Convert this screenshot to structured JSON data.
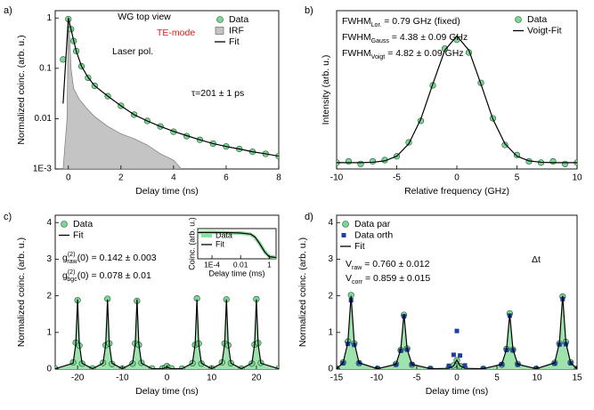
{
  "chart_data": [
    {
      "type": "scatter",
      "panel": "a)",
      "xlabel": "Delay time (ns)",
      "ylabel": "Normalized coinc. (arb. u.)",
      "xlim": [
        -0.5,
        8
      ],
      "ylim": [
        0.001,
        1.4
      ],
      "ylog": true,
      "xticks": [
        0,
        2,
        4,
        6,
        8
      ],
      "yticks": [
        {
          "value": 0.001,
          "label": "1E-3"
        },
        0.01,
        0.1,
        1
      ],
      "legend": "upper right",
      "annotations": [
        {
          "main": "τ=201 ± 1 ps"
        },
        {
          "main": "WG top view"
        },
        {
          "main": "TE-mode",
          "color": "#e0201b"
        },
        {
          "main": "Laser pol."
        }
      ],
      "series": [
        {
          "name": "Data",
          "style": "markers",
          "marker": "circle",
          "color": "#7fd49a",
          "x": [
            -0.2,
            0,
            0.1,
            0.2,
            0.3,
            0.5,
            0.75,
            1,
            1.5,
            2,
            2.5,
            3,
            3.5,
            4,
            4.5,
            5,
            5.5,
            6,
            6.5,
            7,
            7.5,
            8
          ],
          "values": [
            0.15,
            0.95,
            0.6,
            0.35,
            0.22,
            0.11,
            0.065,
            0.045,
            0.028,
            0.018,
            0.012,
            0.009,
            0.007,
            0.0055,
            0.0045,
            0.0038,
            0.0032,
            0.0028,
            0.0025,
            0.0022,
            0.002,
            0.0018
          ]
        },
        {
          "name": "IRF",
          "style": "area",
          "color": "#c4c4c4",
          "x": [
            -0.2,
            -0.05,
            0,
            0.05,
            0.1,
            0.2,
            0.4,
            0.7,
            1,
            1.5,
            2,
            2.5,
            3,
            3.5,
            4,
            4.3
          ],
          "values": [
            0.001,
            0.01,
            1,
            0.4,
            0.1,
            0.04,
            0.025,
            0.016,
            0.011,
            0.007,
            0.005,
            0.004,
            0.003,
            0.002,
            0.0015,
            0.001
          ]
        },
        {
          "name": "Fit",
          "style": "line",
          "color": "#000000",
          "x": [
            -0.2,
            0,
            0.1,
            0.2,
            0.3,
            0.5,
            0.75,
            1,
            1.5,
            2,
            2.5,
            3,
            3.5,
            4,
            4.5,
            5,
            5.5,
            6,
            6.5,
            7,
            7.5,
            8
          ],
          "values": [
            0.02,
            1,
            0.6,
            0.36,
            0.22,
            0.11,
            0.066,
            0.045,
            0.028,
            0.018,
            0.012,
            0.009,
            0.007,
            0.0056,
            0.0046,
            0.0038,
            0.0032,
            0.0028,
            0.0025,
            0.0022,
            0.002,
            0.0018
          ]
        }
      ]
    },
    {
      "type": "scatter",
      "panel": "b)",
      "xlabel": "Relative frequency (GHz)",
      "ylabel": "Intensity (arb. u.)",
      "xlim": [
        -10,
        10
      ],
      "ylim": [
        0,
        1.25
      ],
      "xticks": [
        -10,
        -5,
        0,
        5,
        10
      ],
      "yticks": [],
      "legend": "upper right",
      "annotations": [
        {
          "main": "FWHM",
          "sub": "Lor.",
          "rest": "  = 0.79 GHz (fixed)"
        },
        {
          "main": "FWHM",
          "sub": "Gauss",
          "rest": " = 4.38 ± 0.09 GHz"
        },
        {
          "main": "FWHM",
          "sub": "Voigt",
          "rest": " = 4.82 ± 0.09 GHz"
        }
      ],
      "x": [
        -10,
        -9,
        -8,
        -7,
        -6,
        -5,
        -4,
        -3,
        -2,
        -1,
        0,
        1,
        2,
        3,
        4,
        5,
        6,
        7,
        8,
        9,
        10
      ],
      "series": [
        {
          "name": "Data",
          "style": "markers",
          "marker": "circle",
          "color": "#7fd49a",
          "values": [
            0.05,
            0.06,
            0.04,
            0.06,
            0.07,
            0.1,
            0.21,
            0.38,
            0.66,
            0.95,
            1.02,
            0.92,
            0.68,
            0.4,
            0.19,
            0.11,
            0.06,
            0.05,
            0.06,
            0.04,
            0.05
          ]
        },
        {
          "name": "Voigt-Fit",
          "style": "line",
          "color": "#000000",
          "values": [
            0.05,
            0.05,
            0.05,
            0.053,
            0.064,
            0.101,
            0.199,
            0.393,
            0.671,
            0.938,
            1.05,
            0.938,
            0.671,
            0.393,
            0.199,
            0.101,
            0.064,
            0.053,
            0.05,
            0.05,
            0.05
          ]
        }
      ]
    },
    {
      "type": "scatter",
      "panel": "c)",
      "xlabel": "Delay time (ns)",
      "ylabel": "Normalized coinc. (arb. u.)",
      "xlim": [
        -25,
        25
      ],
      "ylim": [
        0,
        4.2
      ],
      "xticks": [
        -20,
        -10,
        0,
        10,
        20
      ],
      "yticks": [
        0,
        1,
        2,
        3,
        4
      ],
      "legend": "upper left",
      "annotations": [
        {
          "main": "g",
          "sup": "(2)",
          "sub": "raw",
          "rest": "(0) = 0.142 ± 0.003"
        },
        {
          "main": "g",
          "sup": "(2)",
          "sub": "bgc",
          "rest": "(0) = 0.078 ± 0.01"
        }
      ],
      "x": [
        -25,
        -21,
        -20.4,
        -20,
        -19.6,
        -19,
        -16.65,
        -14.3,
        -13.7,
        -13.3,
        -12.9,
        -12.3,
        -10,
        -7.7,
        -7.1,
        -6.7,
        -6.3,
        -5.7,
        -3.35,
        -1,
        -0.4,
        0,
        0.4,
        1,
        3.35,
        5.7,
        6.3,
        6.7,
        7.1,
        7.7,
        10,
        12.3,
        12.9,
        13.3,
        13.7,
        14.3,
        16.65,
        19,
        19.6,
        20,
        20.4,
        21,
        25
      ],
      "series": [
        {
          "name": "Data",
          "style": "markers",
          "marker": "circle",
          "color": "#7fd49a",
          "values": [
            0.01,
            0.18,
            0.72,
            1.88,
            0.64,
            0.15,
            0.02,
            0.17,
            0.65,
            1.92,
            0.7,
            0.14,
            0.01,
            0.15,
            0.7,
            1.86,
            0.66,
            0.17,
            0.02,
            0.02,
            0.04,
            0.08,
            0.03,
            0.02,
            0.01,
            0.16,
            0.66,
            1.93,
            0.7,
            0.15,
            0.02,
            0.18,
            0.7,
            1.9,
            0.65,
            0.16,
            0.01,
            0.15,
            0.67,
            1.91,
            0.71,
            0.17,
            0.02
          ]
        },
        {
          "name": "Fit",
          "style": "line",
          "color": "#000000",
          "fill": "#9ee3ae",
          "values": [
            0.01,
            0.16,
            0.68,
            1.9,
            0.68,
            0.16,
            0.01,
            0.16,
            0.68,
            1.9,
            0.68,
            0.16,
            0.01,
            0.16,
            0.68,
            1.9,
            0.68,
            0.16,
            0.01,
            0.01,
            0.03,
            0.07,
            0.03,
            0.01,
            0.01,
            0.16,
            0.68,
            1.9,
            0.68,
            0.16,
            0.01,
            0.16,
            0.68,
            1.9,
            0.68,
            0.16,
            0.01,
            0.16,
            0.68,
            1.9,
            0.68,
            0.16,
            0.01
          ]
        }
      ]
    },
    {
      "type": "scatter",
      "panel": "d)",
      "xlabel": "Delay time (ns)",
      "ylabel": "Normalized coinc. (arb. u.)",
      "xlim": [
        -15,
        15
      ],
      "ylim": [
        0,
        4.2
      ],
      "xticks": [
        -15,
        -10,
        -5,
        0,
        5,
        10,
        15
      ],
      "yticks": [
        0,
        1,
        2,
        3,
        4
      ],
      "legend": "upper left",
      "annotations": [
        {
          "main": "V",
          "sub": "raw",
          "rest": " = 0.760 ± 0.012"
        },
        {
          "main": "V",
          "sub": "corr",
          "rest": " = 0.859 ± 0.015"
        },
        {
          "main": "Δt"
        }
      ],
      "x": [
        -15,
        -14.2,
        -13.6,
        -13.2,
        -12.8,
        -12.2,
        -9.9,
        -7.6,
        -7,
        -6.6,
        -6.2,
        -5.6,
        -3.3,
        -1,
        -0.4,
        0,
        0.4,
        1,
        3.3,
        5.6,
        6.2,
        6.6,
        7,
        7.6,
        9.9,
        12.2,
        12.8,
        13.2,
        13.6,
        14.2,
        15
      ],
      "series": [
        {
          "name": "Data par",
          "style": "markers",
          "marker": "circle",
          "color": "#7fd49a",
          "values": [
            0.01,
            0.18,
            0.75,
            2.02,
            0.7,
            0.16,
            0.01,
            0.14,
            0.52,
            1.48,
            0.56,
            0.12,
            0.01,
            0.03,
            0.1,
            0.24,
            0.08,
            0.02,
            0.01,
            0.12,
            0.55,
            1.52,
            0.53,
            0.14,
            0.01,
            0.17,
            0.7,
            1.98,
            0.74,
            0.18,
            0.01
          ]
        },
        {
          "name": "Data orth",
          "style": "markers",
          "marker": "square",
          "color": "#1f3fa0",
          "values": [
            0.01,
            0.16,
            0.69,
            1.88,
            0.66,
            0.17,
            0.01,
            0.12,
            0.5,
            1.44,
            0.53,
            0.13,
            0.01,
            0.09,
            0.39,
            1.04,
            0.37,
            0.1,
            0.01,
            0.13,
            0.52,
            1.46,
            0.51,
            0.12,
            0.01,
            0.15,
            0.67,
            1.91,
            0.68,
            0.16,
            0.01
          ]
        },
        {
          "name": "Fit",
          "style": "line",
          "color": "#000000",
          "fill": "#9ee3ae",
          "values": [
            0.01,
            0.17,
            0.72,
            2.0,
            0.72,
            0.17,
            0.01,
            0.13,
            0.54,
            1.5,
            0.54,
            0.13,
            0.01,
            0.02,
            0.09,
            0.25,
            0.09,
            0.02,
            0.01,
            0.13,
            0.54,
            1.5,
            0.54,
            0.13,
            0.01,
            0.17,
            0.72,
            2.0,
            0.72,
            0.17,
            0.01
          ]
        }
      ]
    },
    {
      "type": "scatter",
      "xlabel": "Delay time (ms)",
      "ylabel": "Coinc. (arb. u.)",
      "xlim": [
        1e-05,
        3
      ],
      "ylim": [
        0,
        1.15
      ],
      "xlog": true,
      "xticks": [
        {
          "value": 0.0001,
          "label": "1E-4"
        },
        0.01,
        1
      ],
      "yticks": [],
      "legend": "upper left",
      "x": [
        1e-05,
        0.0001,
        0.001,
        0.01,
        0.05,
        0.1,
        0.2,
        0.5,
        1,
        3
      ],
      "series": [
        {
          "name": "Data",
          "style": "thick",
          "color": "#8fdc9f",
          "values": [
            1.0,
            1.01,
            0.99,
            0.98,
            0.93,
            0.82,
            0.6,
            0.26,
            0.09,
            0.05
          ]
        },
        {
          "name": "Fit",
          "style": "line",
          "color": "#000000",
          "values": [
            1,
            1,
            1,
            0.98,
            0.94,
            0.83,
            0.6,
            0.25,
            0.08,
            0.05
          ]
        }
      ]
    }
  ]
}
